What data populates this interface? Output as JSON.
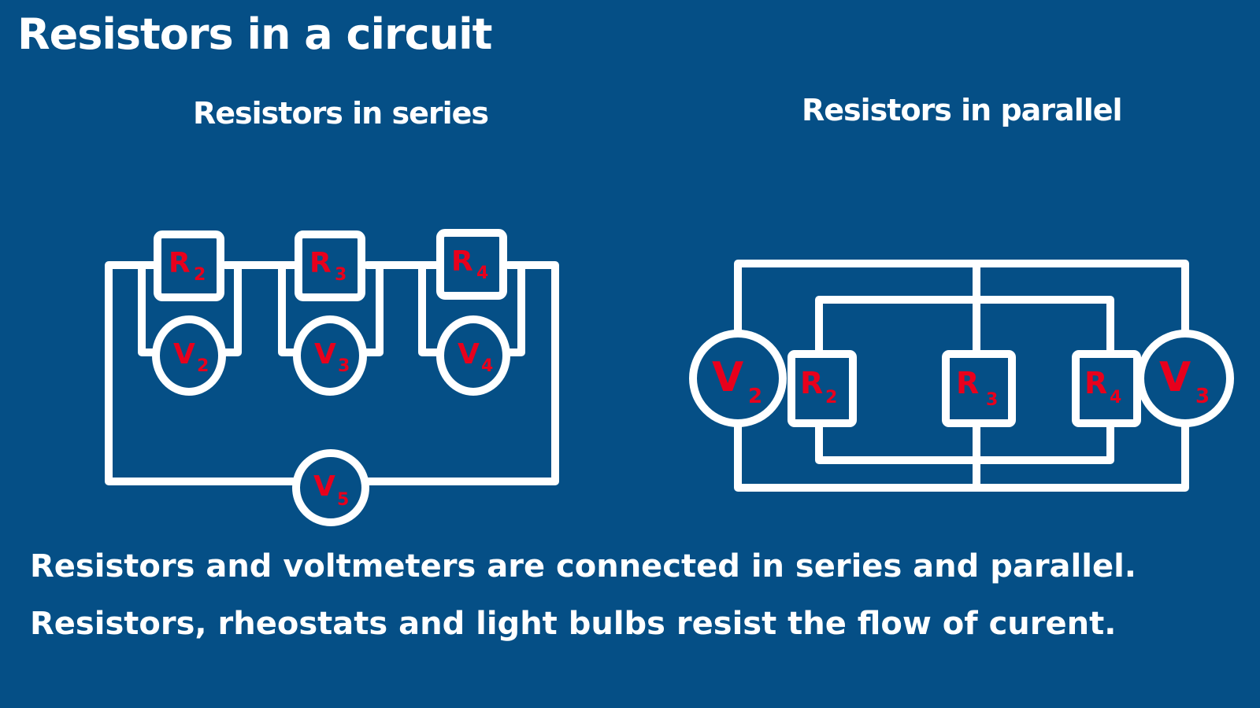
{
  "title": "Resistors in a circuit",
  "series": {
    "heading": "Resistors in series",
    "resistors": [
      {
        "letter": "R",
        "sub": "2"
      },
      {
        "letter": "R",
        "sub": "3"
      },
      {
        "letter": "R",
        "sub": "4"
      }
    ],
    "voltmeters": [
      {
        "letter": "V",
        "sub": "2"
      },
      {
        "letter": "V",
        "sub": "3"
      },
      {
        "letter": "V",
        "sub": "4"
      },
      {
        "letter": "V",
        "sub": "5"
      }
    ]
  },
  "parallel": {
    "heading": "Resistors in parallel",
    "resistors": [
      {
        "letter": "R",
        "sub": "2"
      },
      {
        "letter": "R",
        "sub": "3"
      },
      {
        "letter": "R",
        "sub": "4"
      }
    ],
    "voltmeters": [
      {
        "letter": "V",
        "sub": "2"
      },
      {
        "letter": "V",
        "sub": "3"
      }
    ]
  },
  "captions": [
    "Resistors and voltmeters are connected in series and parallel.",
    "Resistors, rheostats and light bulbs resist the flow of  curent."
  ],
  "colors": {
    "background": "#054f86",
    "wire": "#ffffff",
    "label": "#e8001c"
  }
}
